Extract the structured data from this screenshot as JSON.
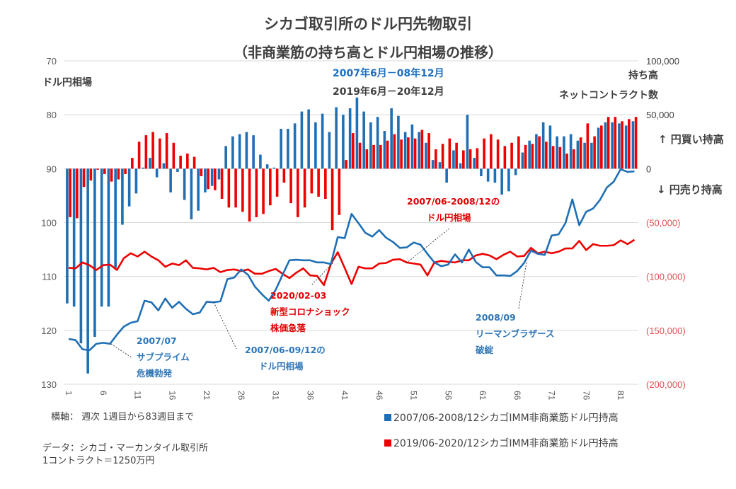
{
  "header": {
    "title": "シカゴ取引所のドル円先物取引",
    "subtitle": "（非商業筋の持ち高とドル円相場の推移）"
  },
  "labels": {
    "left_axis_title": "ドル円相場",
    "right_axis_title_1": "持ち高",
    "right_axis_title_2": "ネットコントラクト数",
    "period_blue": "2007年6月－08年12月",
    "period_gray": "2019年6月－20年12月",
    "yen_buy": "↑ 円買い持高",
    "yen_sell": "↓ 円売り持高",
    "xaxis_note": "横軸：  週次 1週目から83週目まで",
    "source_1": "データ：シカゴ・マーカンタイル取引所",
    "source_2": "1コントラクト＝1250万円"
  },
  "annotations": [
    {
      "id": "subprime",
      "color": "blue",
      "lines": [
        "2007/07",
        "サブプライム",
        "危機勃発"
      ]
    },
    {
      "id": "blue-rate",
      "color": "blue",
      "lines": [
        "2007/06-09/12の",
        "ドル円相場"
      ]
    },
    {
      "id": "corona",
      "color": "red",
      "lines": [
        "2020/02-03",
        "新型コロナショック",
        "株価急落"
      ]
    },
    {
      "id": "red-rate",
      "color": "red",
      "lines": [
        "2007/06-2008/12の",
        "ドル円相場"
      ]
    },
    {
      "id": "lehman",
      "color": "blue",
      "lines": [
        "2008/09",
        "リーマンブラザース",
        "破綻"
      ]
    }
  ],
  "colors": {
    "blue": "#1f6fb5",
    "red": "#ee0000",
    "grid": "#d9d9d9",
    "right_neg_tick": "#e05050"
  },
  "chart_data": {
    "type": "bar+line",
    "title": "シカゴ取引所のドル円先物取引（非商業筋の持ち高とドル円相場の推移）",
    "xlabel": "週次 1週目から83週目まで",
    "x_ticks": [
      "1",
      "6",
      "11",
      "16",
      "21",
      "26",
      "31",
      "36",
      "41",
      "46",
      "51",
      "56",
      "61",
      "66",
      "71",
      "76",
      "81"
    ],
    "x_range": [
      1,
      83
    ],
    "left_axis": {
      "label": "ドル円相場",
      "range": [
        70,
        130
      ],
      "inverted": true,
      "ticks": [
        "70",
        "80",
        "90",
        "100",
        "110",
        "120",
        "130"
      ]
    },
    "right_axis": {
      "label": "持ち高 ネットコントラクト数",
      "range": [
        -200000,
        100000
      ],
      "ticks": [
        "100,000",
        "50,000",
        "0",
        "(50,000)",
        "(100,000)",
        "(150,000)",
        "(200,000)"
      ]
    },
    "grid": true,
    "legend_position": "bottom-right",
    "series": [
      {
        "name": "2007/06-2008/12シカゴIMM非商業筋ドル円持高",
        "type": "bar",
        "axis": "right",
        "color": "#1f6fb5",
        "values": [
          -125000,
          -128000,
          -162000,
          -190000,
          -156000,
          -128000,
          -128000,
          -92000,
          -52000,
          -35000,
          -23000,
          1000,
          10000,
          -8000,
          5000,
          -22000,
          -3000,
          -29000,
          -47000,
          -39000,
          -22000,
          -16000,
          -10000,
          21000,
          30000,
          32000,
          34000,
          31000,
          13000,
          4000,
          1000,
          37000,
          37000,
          42000,
          53000,
          55000,
          43000,
          51000,
          34000,
          57000,
          50000,
          56000,
          66000,
          53000,
          43000,
          48000,
          35000,
          56000,
          49000,
          34000,
          41000,
          34000,
          24000,
          8000,
          6000,
          -13000,
          17000,
          5000,
          50000,
          10000,
          -7000,
          -12000,
          -13000,
          -24000,
          -21000,
          -6000,
          15000,
          26000,
          32000,
          43000,
          40000,
          30000,
          30000,
          32000,
          26000,
          24000,
          24000,
          38000,
          43000,
          43000,
          42000,
          40000,
          44000
        ]
      },
      {
        "name": "2019/06-2020/12シカゴIMM非商業筋ドル円持高",
        "type": "bar",
        "axis": "right",
        "color": "#ee0000",
        "values": [
          -45000,
          -46000,
          -17000,
          -11000,
          -1000,
          -5000,
          -12000,
          -10000,
          -5000,
          10000,
          25000,
          31000,
          34000,
          28000,
          33000,
          24000,
          12000,
          14000,
          11000,
          -7000,
          -19000,
          -20000,
          -28000,
          -36000,
          -36000,
          -40000,
          -49000,
          -45000,
          -42000,
          -34000,
          -26000,
          -13000,
          -32000,
          -45000,
          -36000,
          -23000,
          -26000,
          -28000,
          -57000,
          -43000,
          8000,
          33000,
          24000,
          18000,
          22000,
          22000,
          26000,
          32000,
          27000,
          29000,
          28000,
          36000,
          33000,
          18000,
          23000,
          28000,
          24000,
          17000,
          18000,
          19000,
          28000,
          32000,
          27000,
          21000,
          24000,
          30000,
          22000,
          23000,
          30000,
          25000,
          21000,
          20000,
          14000,
          18000,
          29000,
          42000,
          30000,
          40000,
          48000,
          48000,
          44000,
          46000,
          48000
        ]
      },
      {
        "name": "2007/06-09/12のドル円相場",
        "type": "line",
        "axis": "left",
        "color": "#1f6fb5",
        "values": [
          121.6,
          121.8,
          123.5,
          123.7,
          122.5,
          122.3,
          122.5,
          120.8,
          119.3,
          118.6,
          118.3,
          114.5,
          114.8,
          116.3,
          114.1,
          115.8,
          114.7,
          116.0,
          117.0,
          116.7,
          114.7,
          114.8,
          114.6,
          110.5,
          110.2,
          108.7,
          109.7,
          111.9,
          113.3,
          114.5,
          112.5,
          109.7,
          107.0,
          106.9,
          107.0,
          107.0,
          107.4,
          107.4,
          107.7,
          102.7,
          102.9,
          98.4,
          100.1,
          101.9,
          102.6,
          101.4,
          102.8,
          103.6,
          104.7,
          104.6,
          103.7,
          104.1,
          105.8,
          107.4,
          108.1,
          107.8,
          105.9,
          107.4,
          105.0,
          107.3,
          108.3,
          108.3,
          109.8,
          109.8,
          109.9,
          109.0,
          107.5,
          105.2,
          105.8,
          106.0,
          102.4,
          102.2,
          100.1,
          95.7,
          100.5,
          98.0,
          97.4,
          95.8,
          93.5,
          92.4,
          90.1,
          90.6,
          90.5
        ]
      },
      {
        "name": "2007/06-2008/12のドル円相場",
        "type": "line",
        "axis": "left",
        "color": "#ee0000",
        "values": [
          108.4,
          108.5,
          107.4,
          107.9,
          108.8,
          107.9,
          107.8,
          108.8,
          106.6,
          105.7,
          106.3,
          105.4,
          106.3,
          107.0,
          108.2,
          107.6,
          107.9,
          107.0,
          108.4,
          108.5,
          108.7,
          108.4,
          109.2,
          108.8,
          108.7,
          109.0,
          108.7,
          109.5,
          109.5,
          109.0,
          108.6,
          109.5,
          110.3,
          109.3,
          108.5,
          109.8,
          109.9,
          111.6,
          107.7,
          105.5,
          108.4,
          111.4,
          108.2,
          108.5,
          108.5,
          107.6,
          107.5,
          106.9,
          106.8,
          107.4,
          107.6,
          107.8,
          109.8,
          107.4,
          107.1,
          107.3,
          107.4,
          107.0,
          107.0,
          106.1,
          105.8,
          106.1,
          106.8,
          106.0,
          105.4,
          106.3,
          106.2,
          104.7,
          105.7,
          105.4,
          105.7,
          105.4,
          104.8,
          104.8,
          103.4,
          105.1,
          104.0,
          104.3,
          104.3,
          104.2,
          103.3,
          104.0,
          103.2
        ]
      }
    ]
  }
}
